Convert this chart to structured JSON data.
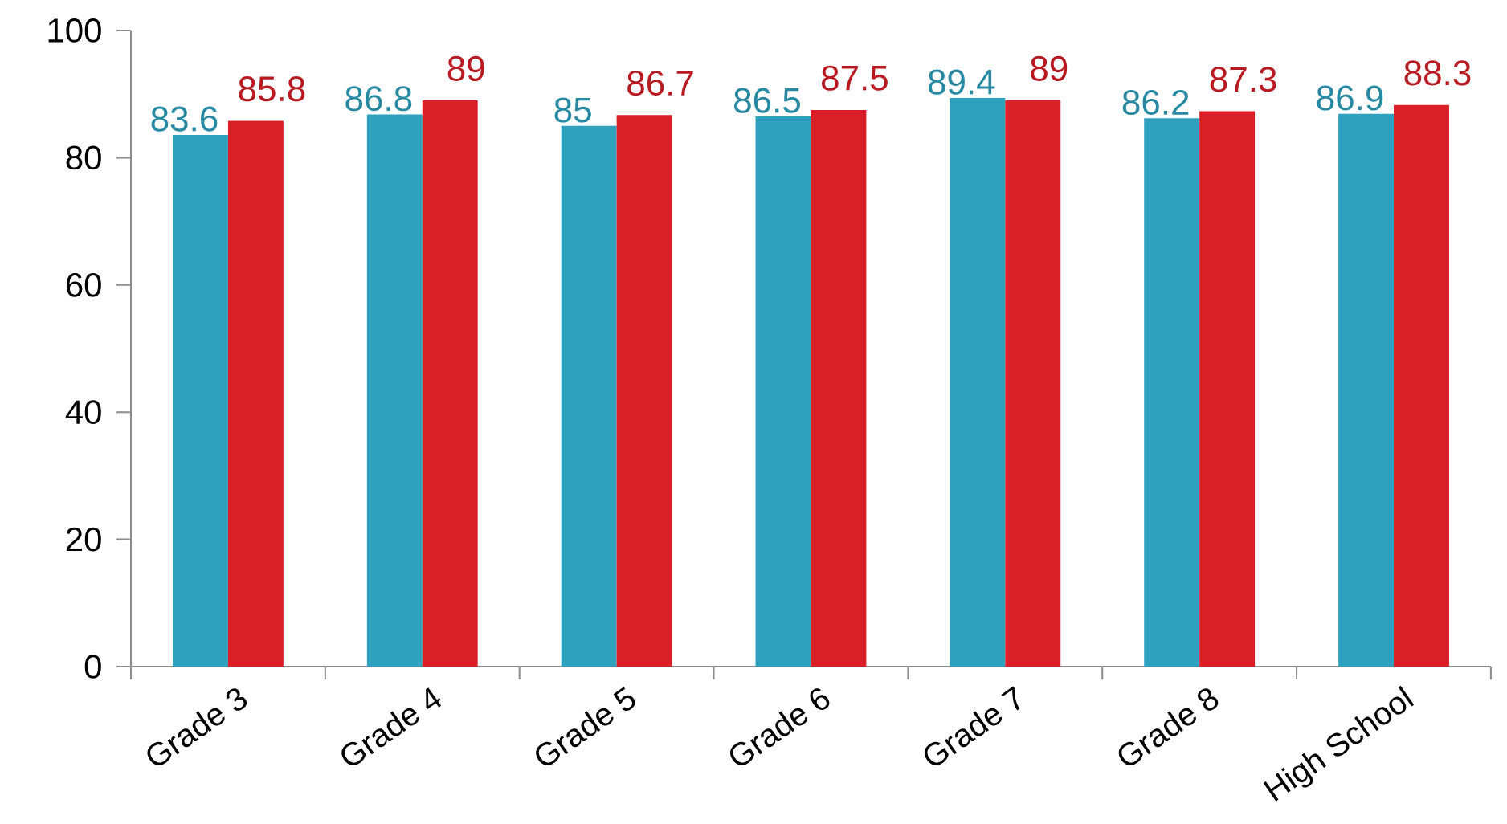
{
  "chart_data": {
    "type": "bar",
    "categories": [
      "Grade 3",
      "Grade 4",
      "Grade 5",
      "Grade 6",
      "Grade 7",
      "Grade 8",
      "High School"
    ],
    "series": [
      {
        "color": "#2ea1bf",
        "values": [
          83.6,
          86.8,
          85,
          86.5,
          89.4,
          86.2,
          86.9
        ]
      },
      {
        "color": "#d91f27",
        "values": [
          85.8,
          89,
          86.7,
          87.5,
          89,
          87.3,
          88.3
        ]
      }
    ],
    "ylim": [
      0,
      100
    ],
    "yticks": [
      0,
      20,
      40,
      60,
      80,
      100
    ],
    "data_labels": true
  }
}
